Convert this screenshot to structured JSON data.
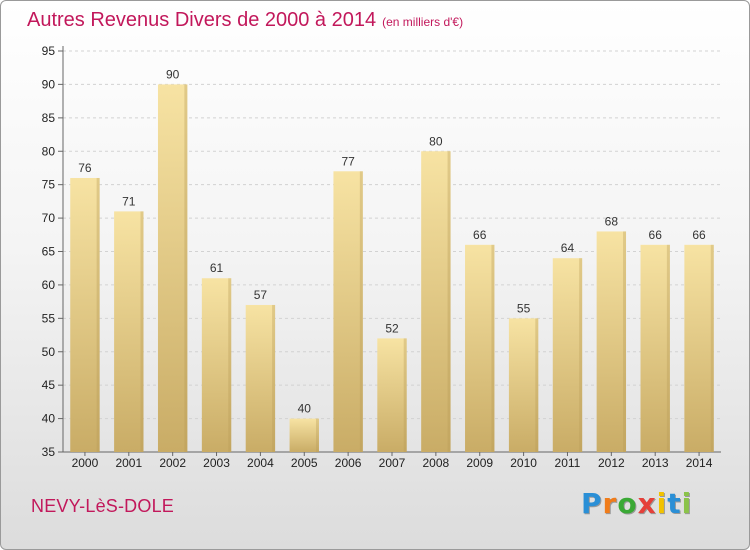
{
  "title": "Autres Revenus Divers de 2000 à 2014",
  "unit": "(en milliers d'€)",
  "commune": "NEVY-LèS-DOLE",
  "logo": {
    "letters": [
      "P",
      "r",
      "o",
      "x",
      "i",
      "t",
      "i"
    ],
    "colors": [
      "#2a8fd6",
      "#f07c1a",
      "#3aa935",
      "#e5403a",
      "#f2c200",
      "#2a8fd6",
      "#8bc34a"
    ]
  },
  "colors": {
    "title": "#c2185b",
    "bar_light": "#f7e3a3",
    "bar_dark": "#c9ac66"
  },
  "chart_data": {
    "type": "bar",
    "categories": [
      "2000",
      "2001",
      "2002",
      "2003",
      "2004",
      "2005",
      "2006",
      "2007",
      "2008",
      "2009",
      "2010",
      "2011",
      "2012",
      "2013",
      "2014"
    ],
    "values": [
      76,
      71,
      90,
      61,
      57,
      40,
      77,
      52,
      80,
      66,
      55,
      64,
      68,
      66,
      66
    ],
    "ylim": [
      35,
      95
    ],
    "yticks": [
      35,
      40,
      45,
      50,
      55,
      60,
      65,
      70,
      75,
      80,
      85,
      90,
      95
    ],
    "grid": true,
    "legend": "none"
  }
}
